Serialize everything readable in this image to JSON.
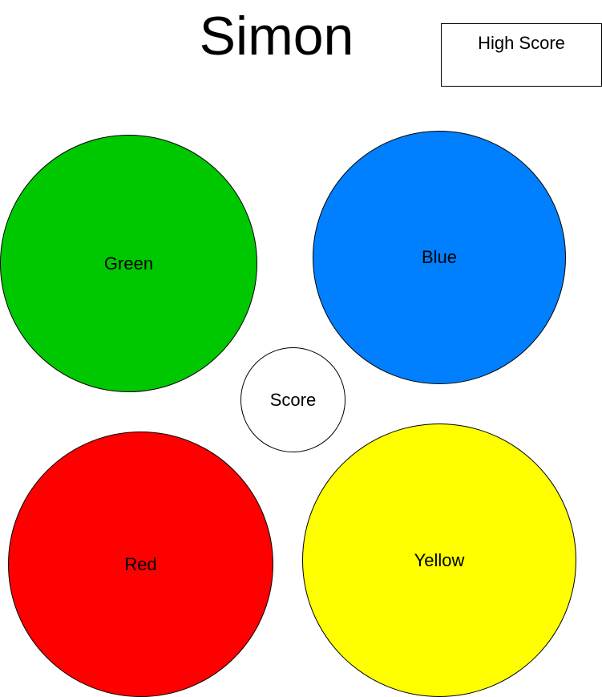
{
  "title": "Simon",
  "high_score": {
    "label": "High Score"
  },
  "score": {
    "label": "Score"
  },
  "buttons": {
    "green": {
      "label": "Green",
      "color": "#00c800"
    },
    "blue": {
      "label": "Blue",
      "color": "#0080ff"
    },
    "red": {
      "label": "Red",
      "color": "#ff0000"
    },
    "yellow": {
      "label": "Yellow",
      "color": "#ffff00"
    }
  }
}
